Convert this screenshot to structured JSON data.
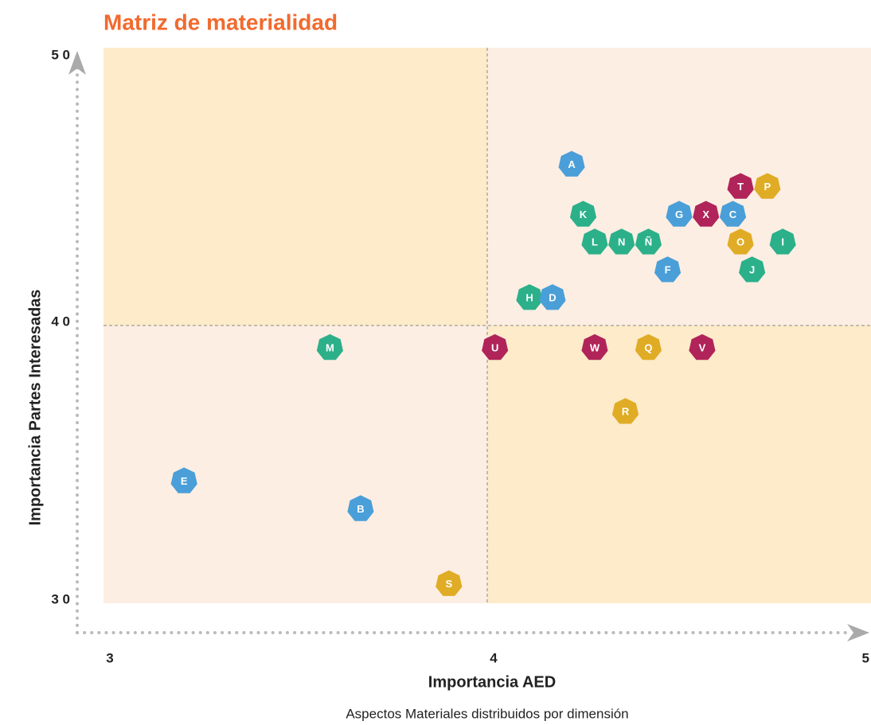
{
  "chart_data": {
    "type": "scatter",
    "title": "Matriz de materialidad",
    "x_label": "Importancia AED",
    "y_label": "Importancia Partes Interesadas",
    "caption": "Aspectos Materiales distribuidos por dimensión",
    "xlim": [
      3,
      5
    ],
    "ylim": [
      3,
      5
    ],
    "xticks": [
      3,
      4,
      5
    ],
    "yticks": [
      {
        "value": 3,
        "label": "3 0"
      },
      {
        "value": 4,
        "label": "4 0"
      },
      {
        "value": 5,
        "label": "5 0"
      }
    ],
    "labels": [
      "A",
      "P",
      "T",
      "K",
      "G",
      "X",
      "C",
      "L",
      "N",
      "Ñ",
      "O",
      "I",
      "F",
      "J",
      "H",
      "D",
      "M",
      "U",
      "W",
      "Q",
      "V",
      "R",
      "E",
      "B",
      "S"
    ],
    "x": [
      4.22,
      4.73,
      4.66,
      4.25,
      4.5,
      4.57,
      4.64,
      4.28,
      4.35,
      4.42,
      4.66,
      4.77,
      4.47,
      4.69,
      4.11,
      4.17,
      3.59,
      4.02,
      4.28,
      4.42,
      4.56,
      4.36,
      3.21,
      3.67,
      3.9
    ],
    "y": [
      4.58,
      4.5,
      4.5,
      4.4,
      4.4,
      4.4,
      4.4,
      4.3,
      4.3,
      4.3,
      4.3,
      4.3,
      4.2,
      4.2,
      4.1,
      4.1,
      3.92,
      3.92,
      3.92,
      3.92,
      3.92,
      3.69,
      3.44,
      3.34,
      3.07
    ],
    "colors": [
      "#4a9fd8",
      "#e0ac25",
      "#b0245a",
      "#2bb08a",
      "#4a9fd8",
      "#b0245a",
      "#4a9fd8",
      "#2bb08a",
      "#2bb08a",
      "#2bb08a",
      "#e0ac25",
      "#2bb08a",
      "#4a9fd8",
      "#2bb08a",
      "#2bb08a",
      "#4a9fd8",
      "#2bb08a",
      "#b0245a",
      "#b0245a",
      "#e0ac25",
      "#b0245a",
      "#e0ac25",
      "#4a9fd8",
      "#4a9fd8",
      "#e0ac25"
    ],
    "quadrant_colors": [
      "#fdebc9",
      "#fdeee3"
    ]
  }
}
